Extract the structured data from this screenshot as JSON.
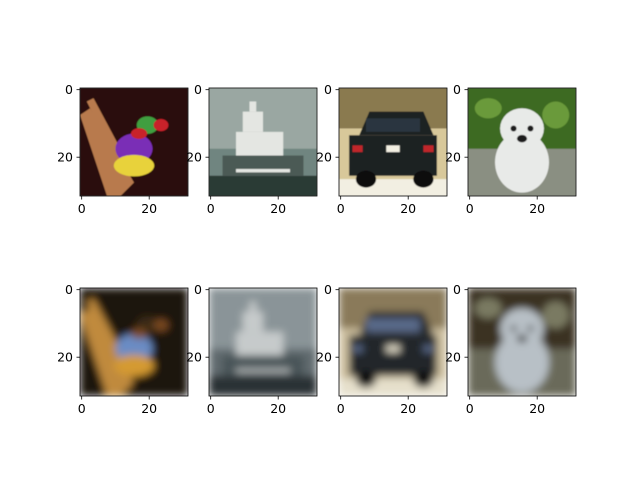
{
  "chart_data": {
    "type": "image-grid",
    "rows": 2,
    "cols": 4,
    "image_size": [
      32,
      32
    ],
    "panels": [
      {
        "row": 0,
        "col": 0,
        "subject": "bird",
        "quality": "sharp",
        "palette": {
          "bg": "#2a0c08",
          "main": "#7a2fb6",
          "accent": "#e8d23a",
          "detail": "#c8202a",
          "extra": "#3f9e3f",
          "branch": "#b87a4e"
        }
      },
      {
        "row": 0,
        "col": 1,
        "subject": "ship",
        "quality": "sharp",
        "palette": {
          "bg": "#6f8580",
          "main": "#e4e6e2",
          "accent": "#2c3a34",
          "detail": "#4c5a55",
          "extra": "#9aa7a2"
        }
      },
      {
        "row": 0,
        "col": 2,
        "subject": "car",
        "quality": "sharp",
        "palette": {
          "bg": "#d8c89a",
          "main": "#1c2024",
          "accent": "#c0282a",
          "detail": "#f2efe2",
          "extra": "#8a7a50"
        }
      },
      {
        "row": 0,
        "col": 3,
        "subject": "dog",
        "quality": "sharp",
        "palette": {
          "bg": "#3d6a22",
          "main": "#e8eae8",
          "accent": "#1a1a1a",
          "detail": "#8a8f82",
          "extra": "#6a9a3a"
        }
      },
      {
        "row": 1,
        "col": 0,
        "subject": "bird",
        "quality": "reconstruction",
        "palette": {
          "bg": "#1e150c",
          "main": "#6a8cc4",
          "accent": "#d49a32",
          "detail": "#7a4a20",
          "extra": "#3a2a18",
          "branch": "#c08a3e"
        }
      },
      {
        "row": 1,
        "col": 1,
        "subject": "ship",
        "quality": "reconstruction",
        "palette": {
          "bg": "#606a6e",
          "main": "#c6cacb",
          "accent": "#2a3034",
          "detail": "#4a5458",
          "extra": "#8a9498"
        }
      },
      {
        "row": 1,
        "col": 2,
        "subject": "car",
        "quality": "reconstruction",
        "palette": {
          "bg": "#cfc1a0",
          "main": "#22262a",
          "accent": "#5a6a8a",
          "detail": "#e6e0cc",
          "extra": "#8a7a5a"
        }
      },
      {
        "row": 1,
        "col": 3,
        "subject": "dog",
        "quality": "reconstruction",
        "palette": {
          "bg": "#3a3222",
          "main": "#b8c0c6",
          "accent": "#2a2a2a",
          "detail": "#6a6a5a",
          "extra": "#7a7a62"
        }
      }
    ],
    "xticks": [
      0,
      20
    ],
    "yticks": [
      0,
      20
    ],
    "xlim": [
      -0.5,
      31.5
    ],
    "ylim": [
      31.5,
      -0.5
    ],
    "grid": false
  }
}
